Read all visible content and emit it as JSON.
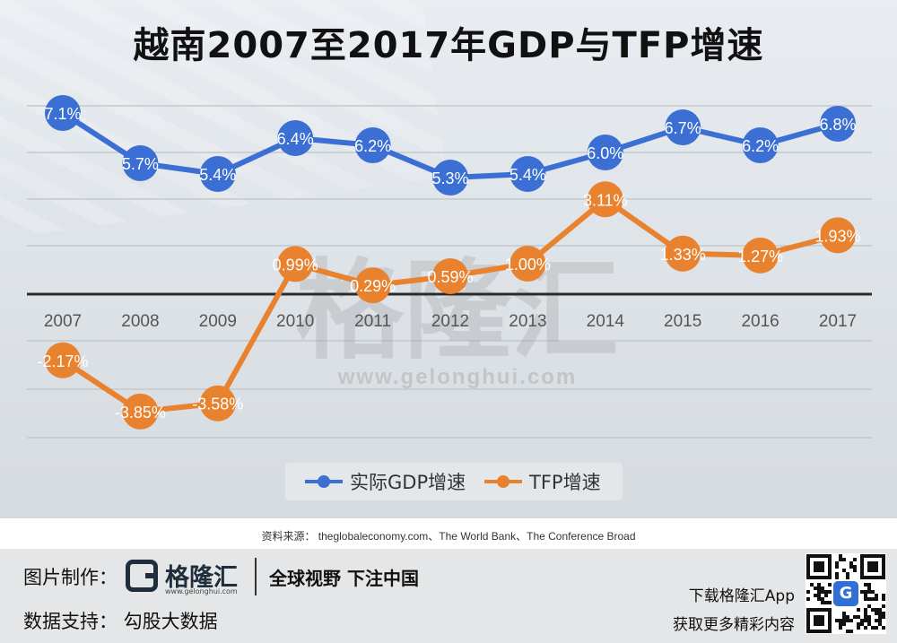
{
  "chart_data": {
    "type": "line",
    "title": "越南2007至2017年GDP与TFP增速",
    "categories": [
      "2007",
      "2008",
      "2009",
      "2010",
      "2011",
      "2012",
      "2013",
      "2014",
      "2015",
      "2016",
      "2017"
    ],
    "series": [
      {
        "name": "实际GDP增速",
        "color": "#3b6fd4",
        "values": [
          7.1,
          5.7,
          5.4,
          6.4,
          6.2,
          5.3,
          5.4,
          6.0,
          6.7,
          6.2,
          6.8
        ],
        "labels": [
          "7.1%",
          "5.7%",
          "5.4%",
          "6.4%",
          "6.2%",
          "5.3%",
          "5.4%",
          "6.0%",
          "6.7%",
          "6.2%",
          "6.8%"
        ]
      },
      {
        "name": "TFP增速",
        "color": "#e8822f",
        "values": [
          -2.17,
          -3.85,
          -3.58,
          0.99,
          0.29,
          0.59,
          1.0,
          3.11,
          1.33,
          1.27,
          1.93
        ],
        "labels": [
          "-2.17%",
          "-3.85%",
          "-3.58%",
          "0.99%",
          "0.29%",
          "0.59%",
          "1.00%",
          "3.11%",
          "1.33%",
          "1.27%",
          "1.93%"
        ]
      }
    ],
    "grid": true,
    "legend_position": "bottom"
  },
  "watermark": {
    "text": "格隆汇",
    "url": "www.gelonghui.com"
  },
  "source": "资料来源： theglobaleconomy.com、The World Bank、The Conference Broad",
  "footer": {
    "made_by_label": "图片制作：",
    "brand_name": "格隆汇",
    "brand_url": "www.gelonghui.com",
    "slogan": "全球视野 下注中国",
    "data_support": "数据支持： 勾股大数据",
    "app_download": "下载格隆汇App",
    "more_content": "获取更多精彩内容"
  }
}
